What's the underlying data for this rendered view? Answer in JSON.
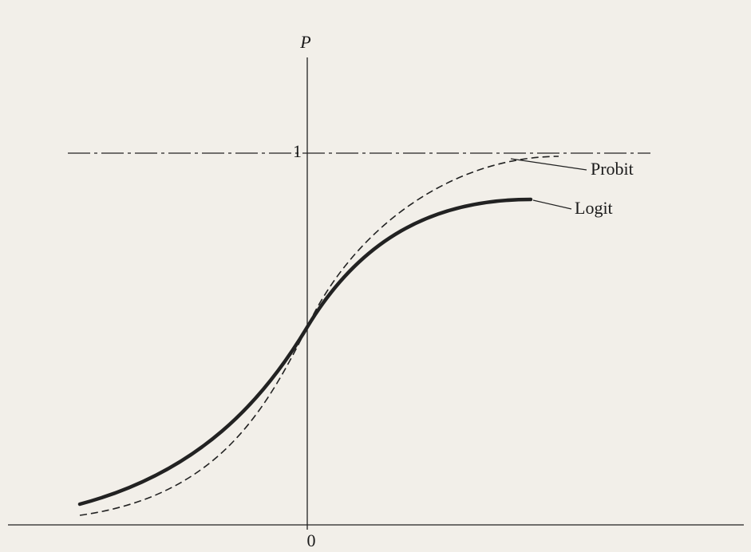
{
  "axis": {
    "y_label": "P",
    "y_one": "1",
    "x_origin": "0"
  },
  "curves": [
    {
      "label": "Probit"
    },
    {
      "label": "Logit"
    }
  ]
}
